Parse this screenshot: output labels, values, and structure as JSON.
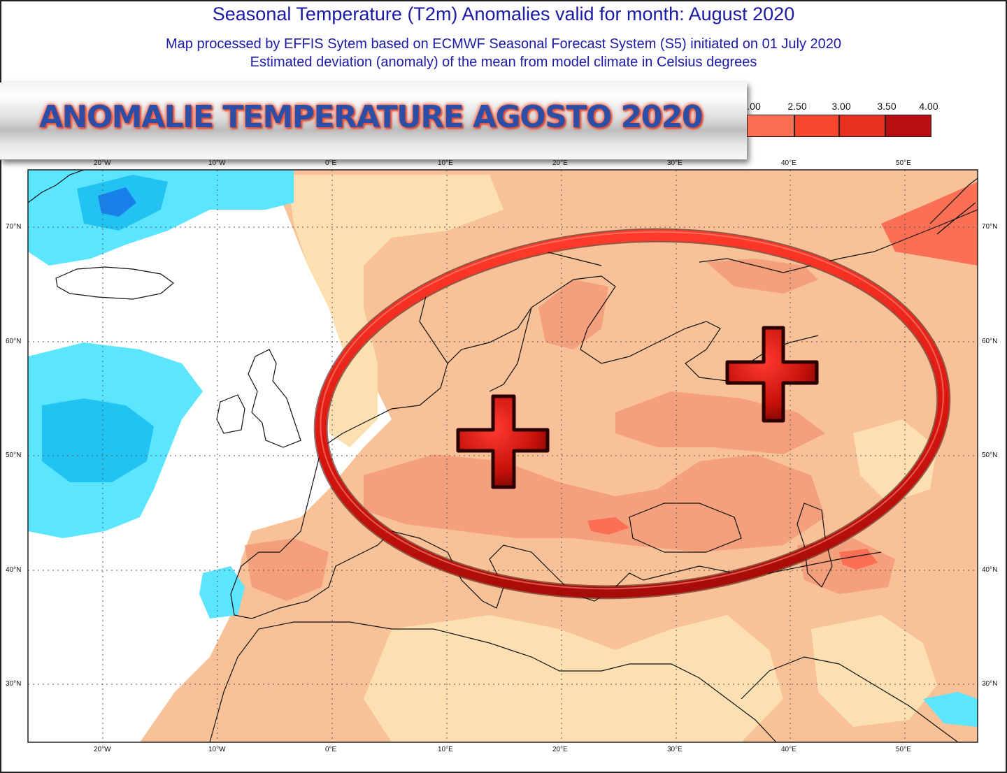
{
  "header": {
    "title": "Seasonal Temperature (T2m) Anomalies valid for month: August 2020",
    "subtitle_line1": "Map processed by EFFIS Sytem based on ECMWF Seasonal Forecast System (S5) initiated on 01 July 2020",
    "subtitle_line2": "Estimated deviation (anomaly) of the mean from model climate in Celsius degrees"
  },
  "banner": {
    "text": "ANOMALIE TEMPERATURE AGOSTO 2020"
  },
  "legend": {
    "labels": [
      ".00",
      "2.50",
      "3.00",
      "3.50",
      "4.00"
    ],
    "colors": [
      "#fb6f55",
      "#f7482f",
      "#e8301f",
      "#b81010"
    ]
  },
  "axes": {
    "lon_labels": [
      "20°W",
      "10°W",
      "0°E",
      "10°E",
      "20°E",
      "30°E",
      "40°E",
      "50°E"
    ],
    "lat_labels": [
      "70°N",
      "60°N",
      "50°N",
      "40°N",
      "30°N"
    ]
  },
  "colors": {
    "cold_light": "#5be5ff",
    "cold_mid": "#22c2f2",
    "cold_dark": "#1a7fe8",
    "warm_pale": "#fde0b2",
    "warm_light": "#f8c197",
    "warm_mid": "#f5a07c",
    "warm_strong": "#fb6f55",
    "annotation_red": "#d11a12",
    "title_blue": "#1a1aa6"
  },
  "annotations": {
    "ellipse": "red-ellipse",
    "markers": [
      "plus-sign",
      "plus-sign"
    ]
  }
}
